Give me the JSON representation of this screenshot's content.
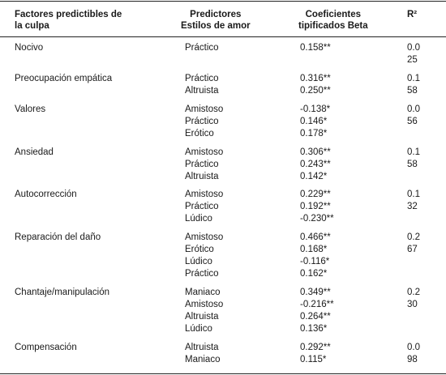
{
  "headers": {
    "factor": [
      "Factores predictibles de",
      "la culpa"
    ],
    "predictors": [
      "Predictores",
      "Estilos de amor"
    ],
    "coef": [
      "Coeficientes",
      "tipificados Beta"
    ],
    "r2": "R²"
  },
  "rows": [
    {
      "factor": "Nocivo",
      "predictors": [
        "Práctico"
      ],
      "coef": [
        "0.158**"
      ],
      "r2": [
        "0.0",
        "25"
      ]
    },
    {
      "factor": "Preocupación empática",
      "predictors": [
        "Práctico",
        "Altruista"
      ],
      "coef": [
        "0.316**",
        "0.250**"
      ],
      "r2": [
        "0.1",
        "58"
      ]
    },
    {
      "factor": "Valores",
      "predictors": [
        "Amistoso",
        "Práctico",
        "Erótico"
      ],
      "coef": [
        "-0.138*",
        "0.146*",
        "0.178*"
      ],
      "r2": [
        "0.0",
        "56"
      ]
    },
    {
      "factor": "Ansiedad",
      "predictors": [
        "Amistoso",
        "Práctico",
        "Altruista"
      ],
      "coef": [
        "0.306**",
        "0.243**",
        "0.142*"
      ],
      "r2": [
        "0.1",
        "58"
      ]
    },
    {
      "factor": "Autocorrección",
      "predictors": [
        "Amistoso",
        "Práctico",
        "Lúdico"
      ],
      "coef": [
        "0.229**",
        "0.192**",
        "-0.230**"
      ],
      "r2": [
        "0.1",
        "32"
      ]
    },
    {
      "factor": "Reparación del daño",
      "predictors": [
        "Amistoso",
        "Erótico",
        "Lúdico",
        "Práctico"
      ],
      "coef": [
        "0.466**",
        "0.168*",
        "-0.116*",
        "0.162*"
      ],
      "r2": [
        "0.2",
        "67"
      ]
    },
    {
      "factor": "Chantaje/manipulación",
      "predictors": [
        "Maniaco",
        "Amistoso",
        "Altruista",
        "Lúdico"
      ],
      "coef": [
        "0.349**",
        "-0.216**",
        "0.264**",
        "0.136*"
      ],
      "r2": [
        "0.2",
        "30"
      ]
    },
    {
      "factor": "Compensación",
      "predictors": [
        "Altruista",
        "Maniaco"
      ],
      "coef": [
        "0.292**",
        "0.115*"
      ],
      "r2": [
        "0.0",
        "98"
      ]
    }
  ]
}
